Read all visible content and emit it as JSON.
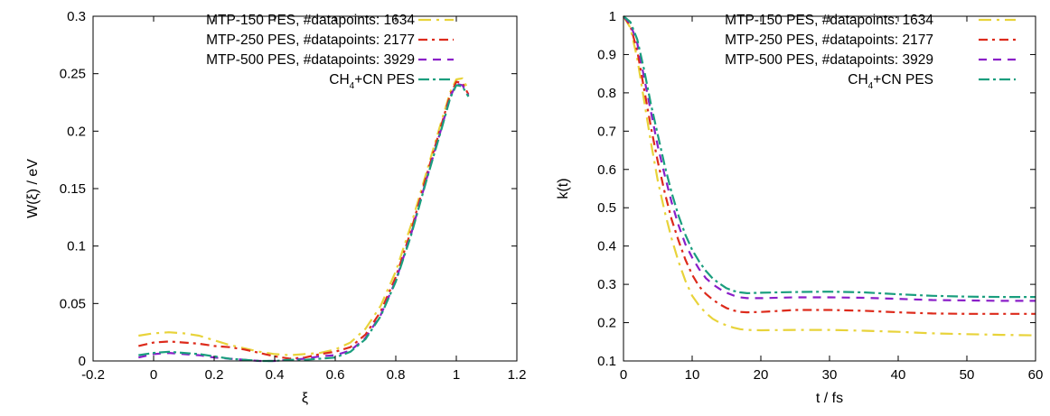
{
  "chart_data": [
    {
      "id": "left",
      "type": "line",
      "xlabel": "ξ",
      "ylabel": "W(ξ) / eV",
      "xlim": [
        -0.2,
        1.2
      ],
      "ylim": [
        0,
        0.3
      ],
      "xticks": [
        -0.2,
        0,
        0.2,
        0.4,
        0.6,
        0.8,
        1,
        1.2
      ],
      "xtick_labels": [
        "-0.2",
        "0",
        "0.2",
        "0.4",
        "0.6",
        "0.8",
        "1",
        "1.2"
      ],
      "yticks": [
        0,
        0.05,
        0.1,
        0.15,
        0.2,
        0.25,
        0.3
      ],
      "ytick_labels": [
        "0",
        "0.05",
        "0.1",
        "0.15",
        "0.2",
        "0.25",
        "0.3"
      ],
      "grid": false,
      "legend_position": "top-right",
      "series": [
        {
          "name": "MTP-150 PES, #datapoints: 1634",
          "color": "#e8d33a",
          "dash": "14,6,3,6",
          "points": [
            [
              -0.05,
              0.022
            ],
            [
              0,
              0.024
            ],
            [
              0.05,
              0.025
            ],
            [
              0.1,
              0.024
            ],
            [
              0.15,
              0.022
            ],
            [
              0.2,
              0.018
            ],
            [
              0.25,
              0.014
            ],
            [
              0.3,
              0.011
            ],
            [
              0.35,
              0.008
            ],
            [
              0.4,
              0.006
            ],
            [
              0.45,
              0.005
            ],
            [
              0.5,
              0.006
            ],
            [
              0.55,
              0.007
            ],
            [
              0.6,
              0.01
            ],
            [
              0.65,
              0.016
            ],
            [
              0.7,
              0.028
            ],
            [
              0.75,
              0.048
            ],
            [
              0.8,
              0.078
            ],
            [
              0.85,
              0.118
            ],
            [
              0.9,
              0.163
            ],
            [
              0.95,
              0.208
            ],
            [
              0.98,
              0.234
            ],
            [
              1.0,
              0.245
            ],
            [
              1.02,
              0.246
            ],
            [
              1.04,
              0.236
            ]
          ]
        },
        {
          "name": "MTP-250 PES, #datapoints: 2177",
          "color": "#dd2a1b",
          "dash": "10,5,3,5",
          "points": [
            [
              -0.05,
              0.013
            ],
            [
              0,
              0.016
            ],
            [
              0.05,
              0.017
            ],
            [
              0.1,
              0.016
            ],
            [
              0.15,
              0.015
            ],
            [
              0.2,
              0.013
            ],
            [
              0.25,
              0.012
            ],
            [
              0.3,
              0.01
            ],
            [
              0.35,
              0.007
            ],
            [
              0.4,
              0.004
            ],
            [
              0.45,
              0.002
            ],
            [
              0.5,
              0.003
            ],
            [
              0.55,
              0.006
            ],
            [
              0.6,
              0.008
            ],
            [
              0.65,
              0.012
            ],
            [
              0.7,
              0.023
            ],
            [
              0.75,
              0.043
            ],
            [
              0.8,
              0.073
            ],
            [
              0.85,
              0.113
            ],
            [
              0.9,
              0.16
            ],
            [
              0.95,
              0.205
            ],
            [
              0.98,
              0.232
            ],
            [
              1.0,
              0.243
            ],
            [
              1.02,
              0.242
            ],
            [
              1.04,
              0.232
            ]
          ]
        },
        {
          "name": "MTP-500 PES, #datapoints: 3929",
          "color": "#8a1fc8",
          "dash": "9,7",
          "points": [
            [
              -0.05,
              0.003
            ],
            [
              0,
              0.006
            ],
            [
              0.05,
              0.007
            ],
            [
              0.1,
              0.006
            ],
            [
              0.15,
              0.005
            ],
            [
              0.2,
              0.003
            ],
            [
              0.25,
              0.002
            ],
            [
              0.3,
              0.001
            ],
            [
              0.35,
              0.0
            ],
            [
              0.4,
              0.0
            ],
            [
              0.45,
              0.001
            ],
            [
              0.5,
              0.002
            ],
            [
              0.55,
              0.004
            ],
            [
              0.6,
              0.005
            ],
            [
              0.65,
              0.009
            ],
            [
              0.7,
              0.02
            ],
            [
              0.75,
              0.04
            ],
            [
              0.8,
              0.07
            ],
            [
              0.85,
              0.11
            ],
            [
              0.9,
              0.157
            ],
            [
              0.95,
              0.202
            ],
            [
              0.98,
              0.23
            ],
            [
              1.0,
              0.241
            ],
            [
              1.02,
              0.24
            ],
            [
              1.04,
              0.231
            ]
          ]
        },
        {
          "name": "CH4+CN PES",
          "color": "#1a9e7e",
          "dash": "12,4,3,4",
          "points": [
            [
              -0.05,
              0.005
            ],
            [
              0,
              0.007
            ],
            [
              0.05,
              0.008
            ],
            [
              0.1,
              0.007
            ],
            [
              0.15,
              0.006
            ],
            [
              0.2,
              0.004
            ],
            [
              0.25,
              0.002
            ],
            [
              0.3,
              0.001
            ],
            [
              0.35,
              0.0
            ],
            [
              0.4,
              0.0
            ],
            [
              0.45,
              0.001
            ],
            [
              0.5,
              0.001
            ],
            [
              0.55,
              0.002
            ],
            [
              0.6,
              0.003
            ],
            [
              0.65,
              0.008
            ],
            [
              0.7,
              0.019
            ],
            [
              0.75,
              0.039
            ],
            [
              0.8,
              0.069
            ],
            [
              0.85,
              0.109
            ],
            [
              0.9,
              0.156
            ],
            [
              0.95,
              0.201
            ],
            [
              0.98,
              0.229
            ],
            [
              1.0,
              0.24
            ],
            [
              1.02,
              0.239
            ],
            [
              1.04,
              0.23
            ]
          ]
        }
      ]
    },
    {
      "id": "right",
      "type": "line",
      "xlabel": "t / fs",
      "ylabel": "k(t)",
      "xlim": [
        0,
        60
      ],
      "ylim": [
        0.1,
        1
      ],
      "xticks": [
        0,
        10,
        20,
        30,
        40,
        50,
        60
      ],
      "xtick_labels": [
        "0",
        "10",
        "20",
        "30",
        "40",
        "50",
        "60"
      ],
      "yticks": [
        0.1,
        0.2,
        0.3,
        0.4,
        0.5,
        0.6,
        0.7,
        0.8,
        0.9,
        1
      ],
      "ytick_labels": [
        "0.1",
        "0.2",
        "0.3",
        "0.4",
        "0.5",
        "0.6",
        "0.7",
        "0.8",
        "0.9",
        "1"
      ],
      "grid": false,
      "legend_position": "top-right",
      "series": [
        {
          "name": "MTP-150 PES, #datapoints: 1634",
          "color": "#e8d33a",
          "dash": "14,6,3,6",
          "points": [
            [
              0,
              1.0
            ],
            [
              1,
              0.97
            ],
            [
              2,
              0.89
            ],
            [
              3,
              0.78
            ],
            [
              4,
              0.67
            ],
            [
              5,
              0.57
            ],
            [
              6,
              0.49
            ],
            [
              7,
              0.42
            ],
            [
              8,
              0.36
            ],
            [
              9,
              0.31
            ],
            [
              10,
              0.27
            ],
            [
              11,
              0.245
            ],
            [
              12,
              0.225
            ],
            [
              13,
              0.21
            ],
            [
              14,
              0.2
            ],
            [
              15,
              0.193
            ],
            [
              16,
              0.187
            ],
            [
              17,
              0.183
            ],
            [
              18,
              0.181
            ],
            [
              20,
              0.18
            ],
            [
              25,
              0.181
            ],
            [
              30,
              0.181
            ],
            [
              35,
              0.179
            ],
            [
              40,
              0.176
            ],
            [
              45,
              0.172
            ],
            [
              50,
              0.17
            ],
            [
              55,
              0.168
            ],
            [
              60,
              0.167
            ]
          ]
        },
        {
          "name": "MTP-250 PES, #datapoints: 2177",
          "color": "#dd2a1b",
          "dash": "10,5,3,5",
          "points": [
            [
              0,
              1.0
            ],
            [
              1,
              0.975
            ],
            [
              2,
              0.91
            ],
            [
              3,
              0.81
            ],
            [
              4,
              0.71
            ],
            [
              5,
              0.62
            ],
            [
              6,
              0.54
            ],
            [
              7,
              0.47
            ],
            [
              8,
              0.415
            ],
            [
              9,
              0.365
            ],
            [
              10,
              0.325
            ],
            [
              11,
              0.295
            ],
            [
              12,
              0.275
            ],
            [
              13,
              0.26
            ],
            [
              14,
              0.248
            ],
            [
              15,
              0.238
            ],
            [
              16,
              0.232
            ],
            [
              17,
              0.228
            ],
            [
              18,
              0.227
            ],
            [
              20,
              0.228
            ],
            [
              25,
              0.233
            ],
            [
              30,
              0.233
            ],
            [
              35,
              0.231
            ],
            [
              40,
              0.227
            ],
            [
              45,
              0.224
            ],
            [
              50,
              0.223
            ],
            [
              55,
              0.223
            ],
            [
              60,
              0.223
            ]
          ]
        },
        {
          "name": "MTP-500 PES, #datapoints: 3929",
          "color": "#8a1fc8",
          "dash": "9,7",
          "points": [
            [
              0,
              1.0
            ],
            [
              1,
              0.98
            ],
            [
              2,
              0.93
            ],
            [
              3,
              0.84
            ],
            [
              4,
              0.75
            ],
            [
              5,
              0.66
            ],
            [
              6,
              0.585
            ],
            [
              7,
              0.515
            ],
            [
              8,
              0.455
            ],
            [
              9,
              0.405
            ],
            [
              10,
              0.37
            ],
            [
              11,
              0.34
            ],
            [
              12,
              0.316
            ],
            [
              13,
              0.3
            ],
            [
              14,
              0.288
            ],
            [
              15,
              0.278
            ],
            [
              16,
              0.271
            ],
            [
              17,
              0.266
            ],
            [
              18,
              0.264
            ],
            [
              20,
              0.264
            ],
            [
              25,
              0.266
            ],
            [
              30,
              0.266
            ],
            [
              35,
              0.265
            ],
            [
              40,
              0.262
            ],
            [
              45,
              0.259
            ],
            [
              50,
              0.258
            ],
            [
              55,
              0.257
            ],
            [
              60,
              0.257
            ]
          ]
        },
        {
          "name": "CH4+CN PES",
          "color": "#1a9e7e",
          "dash": "12,4,3,4",
          "points": [
            [
              0,
              1.0
            ],
            [
              1,
              0.985
            ],
            [
              2,
              0.94
            ],
            [
              3,
              0.86
            ],
            [
              4,
              0.77
            ],
            [
              5,
              0.69
            ],
            [
              6,
              0.61
            ],
            [
              7,
              0.54
            ],
            [
              8,
              0.48
            ],
            [
              9,
              0.43
            ],
            [
              10,
              0.39
            ],
            [
              11,
              0.36
            ],
            [
              12,
              0.335
            ],
            [
              13,
              0.315
            ],
            [
              14,
              0.302
            ],
            [
              15,
              0.29
            ],
            [
              16,
              0.283
            ],
            [
              17,
              0.279
            ],
            [
              18,
              0.277
            ],
            [
              20,
              0.278
            ],
            [
              25,
              0.28
            ],
            [
              30,
              0.281
            ],
            [
              35,
              0.279
            ],
            [
              40,
              0.274
            ],
            [
              45,
              0.27
            ],
            [
              50,
              0.268
            ],
            [
              55,
              0.267
            ],
            [
              60,
              0.267
            ]
          ]
        }
      ]
    }
  ],
  "legend_entries": [
    {
      "text": "MTP-150 PES, #datapoints: 1634"
    },
    {
      "text": "MTP-250 PES, #datapoints: 2177"
    },
    {
      "text": "MTP-500 PES, #datapoints: 3929"
    },
    {
      "text_main": "CH",
      "text_sub": "4",
      "text_tail": "+CN PES"
    }
  ]
}
